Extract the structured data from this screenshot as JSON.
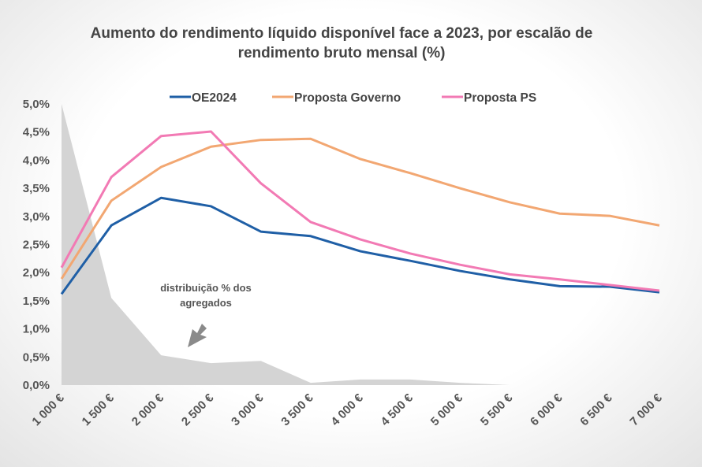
{
  "chart_data": {
    "type": "line",
    "title": [
      "Aumento do rendimento líquido disponível face a 2023, por escalão de",
      "rendimento bruto mensal (%)"
    ],
    "xlabel": "",
    "ylabel": "",
    "categories": [
      "1 000 €",
      "1 500 €",
      "2 000 €",
      "2 500 €",
      "3 000 €",
      "3 500 €",
      "4 000 €",
      "4 500 €",
      "5 000 €",
      "5 500 €",
      "6 000 €",
      "6 500 €",
      "7 000 €"
    ],
    "y_ticks": [
      "0,0%",
      "0,5%",
      "1,0%",
      "1,5%",
      "2,0%",
      "2,5%",
      "3,0%",
      "3,5%",
      "4,0%",
      "4,5%",
      "5,0%"
    ],
    "ylim": [
      0,
      5
    ],
    "grid": false,
    "legend_position": "top",
    "series": [
      {
        "name": "OE2024",
        "color": "#1f5fa6",
        "values": [
          1.62,
          2.84,
          3.33,
          3.18,
          2.73,
          2.65,
          2.38,
          2.21,
          2.03,
          1.88,
          1.76,
          1.75,
          1.65
        ]
      },
      {
        "name": "Proposta Governo",
        "color": "#f2a772",
        "values": [
          1.89,
          3.28,
          3.88,
          4.24,
          4.36,
          4.38,
          4.02,
          3.77,
          3.5,
          3.25,
          3.05,
          3.01,
          2.84
        ]
      },
      {
        "name": "Proposta PS",
        "color": "#f27ab4",
        "values": [
          2.09,
          3.7,
          4.43,
          4.51,
          3.59,
          2.9,
          2.59,
          2.34,
          2.14,
          1.97,
          1.88,
          1.78,
          1.68
        ]
      }
    ],
    "area": {
      "label": "distribuição % dos agregados",
      "label_lines": [
        "distribuição % dos",
        "agregados"
      ],
      "color": "#d4d4d4",
      "values": [
        5.0,
        1.55,
        0.53,
        0.39,
        0.43,
        0.04,
        0.1,
        0.1,
        0.04,
        0,
        0,
        0,
        0
      ]
    }
  }
}
